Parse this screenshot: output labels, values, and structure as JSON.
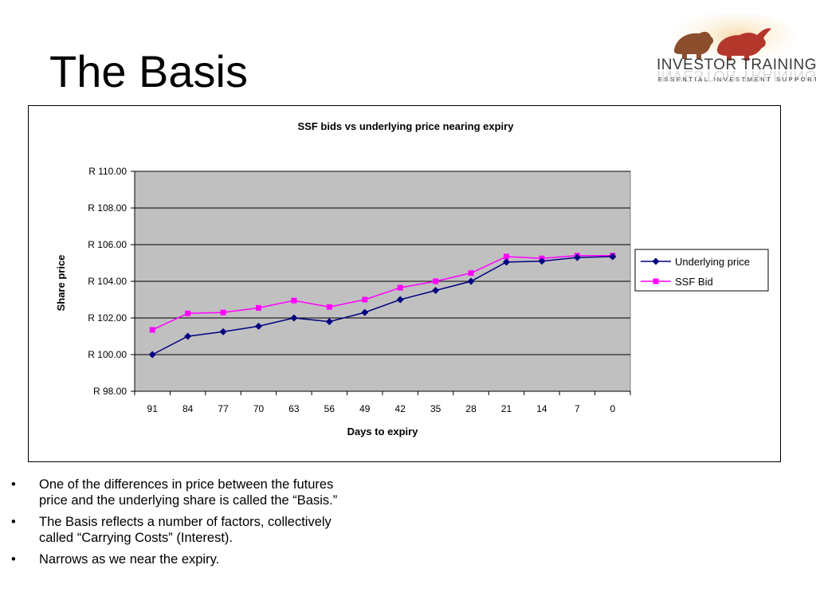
{
  "slide": {
    "title": "The Basis"
  },
  "logo": {
    "name": "INVESTOR TRAINING",
    "tagline": "ESSENTIAL INVESTMENT SUPPORT"
  },
  "bullets": [
    "One of the differences in price between the futures price and the underlying share is called the “Basis.”",
    "The Basis reflects a number of factors, collectively called “Carrying Costs” (Interest).",
    "Narrows as we near the expiry."
  ],
  "chart_data": {
    "type": "line",
    "title": "SSF bids vs underlying price nearing expiry",
    "xlabel": "Days to expiry",
    "ylabel": "Share price",
    "categories": [
      "91",
      "84",
      "77",
      "70",
      "63",
      "56",
      "49",
      "42",
      "35",
      "28",
      "21",
      "14",
      "7",
      "0"
    ],
    "y_ticks": [
      "R 98.00",
      "R 100.00",
      "R 102.00",
      "R 104.00",
      "R 106.00",
      "R 108.00",
      "R 110.00"
    ],
    "ylim": [
      98,
      110
    ],
    "grid": true,
    "legend_position": "right",
    "plot_background": "#c0c0c0",
    "series": [
      {
        "name": "Underlying price",
        "color": "#000080",
        "marker": "diamond",
        "values": [
          100.0,
          101.0,
          101.25,
          101.55,
          102.0,
          101.8,
          102.3,
          103.0,
          103.5,
          104.0,
          105.05,
          105.1,
          105.3,
          105.35
        ]
      },
      {
        "name": "SSF Bid",
        "color": "#ff00ff",
        "marker": "square",
        "values": [
          101.35,
          102.25,
          102.3,
          102.55,
          102.95,
          102.6,
          103.0,
          103.65,
          104.0,
          104.45,
          105.35,
          105.25,
          105.4,
          105.4
        ]
      }
    ]
  }
}
